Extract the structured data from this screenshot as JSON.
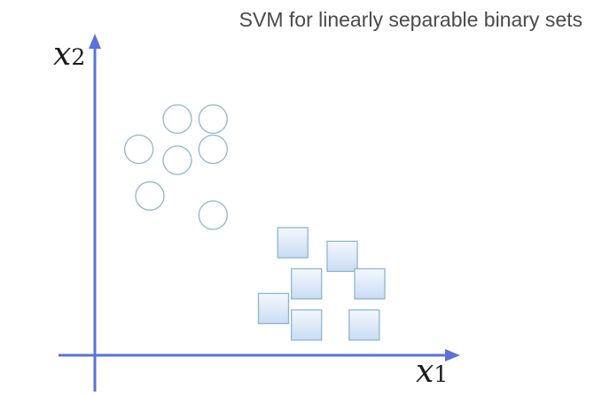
{
  "title": "SVM for linearly separable binary sets",
  "axes": {
    "x_axis_label": "x",
    "x_axis_sub": "1",
    "y_axis_label": "x",
    "y_axis_sub": "2",
    "color": "#5b72d8"
  },
  "circles": {
    "stroke": "#8fb6c9",
    "points": [
      {
        "x": 3.0,
        "y": 8.6
      },
      {
        "x": 4.3,
        "y": 8.6
      },
      {
        "x": 1.6,
        "y": 7.5
      },
      {
        "x": 3.0,
        "y": 7.1
      },
      {
        "x": 4.3,
        "y": 7.5
      },
      {
        "x": 2.0,
        "y": 5.8
      },
      {
        "x": 4.3,
        "y": 5.1
      }
    ]
  },
  "squares": {
    "stroke": "#8fb6c9",
    "fill": "#dbe8f8",
    "points": [
      {
        "x": 7.2,
        "y": 4.1
      },
      {
        "x": 9.0,
        "y": 3.6
      },
      {
        "x": 7.7,
        "y": 2.6
      },
      {
        "x": 10.0,
        "y": 2.6
      },
      {
        "x": 6.5,
        "y": 1.7
      },
      {
        "x": 7.7,
        "y": 1.1
      },
      {
        "x": 9.8,
        "y": 1.1
      }
    ]
  }
}
